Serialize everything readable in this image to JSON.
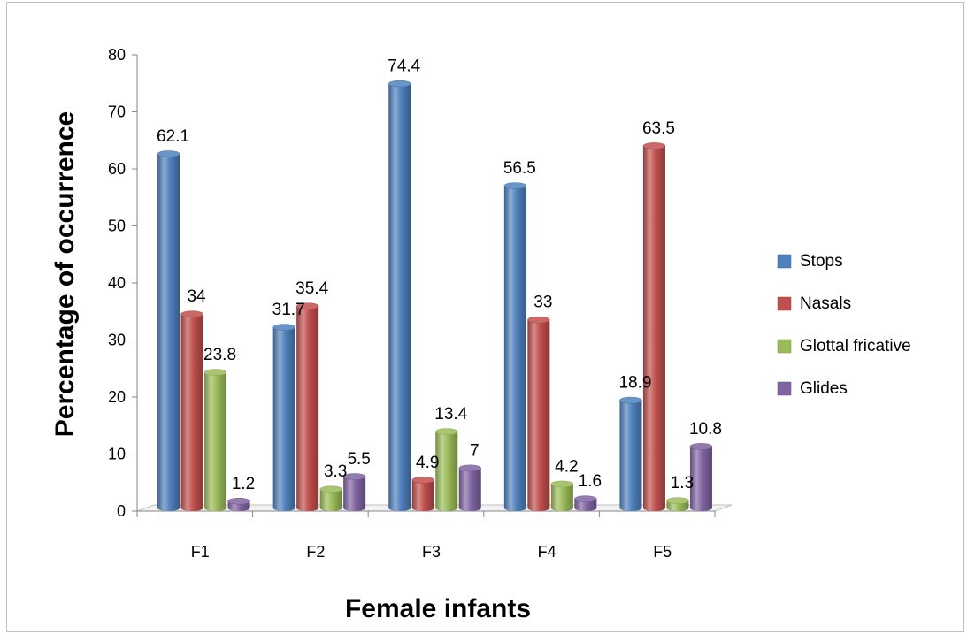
{
  "chart_data": {
    "type": "bar",
    "title": "",
    "xlabel": "Female infants",
    "ylabel": "Percentage of occurrence",
    "categories": [
      "F1",
      "F2",
      "F3",
      "F4",
      "F5"
    ],
    "ylim": [
      0,
      80
    ],
    "yticks": [
      0,
      10,
      20,
      30,
      40,
      50,
      60,
      70,
      80
    ],
    "legend_position": "right",
    "grid": false,
    "series": [
      {
        "name": "Stops",
        "color": "#4f81bd",
        "values": [
          62.1,
          31.7,
          74.4,
          56.5,
          18.9
        ],
        "labels": [
          "62.1",
          "31.7",
          "74.4",
          "56.5",
          "18.9"
        ]
      },
      {
        "name": "Nasals",
        "color": "#c0504d",
        "values": [
          34,
          35.4,
          4.9,
          33,
          63.5
        ],
        "labels": [
          "34",
          "35.4",
          "4.9",
          "33",
          "63.5"
        ]
      },
      {
        "name": "Glottal fricative",
        "color": "#9bbb59",
        "values": [
          23.8,
          3.3,
          13.4,
          4.2,
          1.3
        ],
        "labels": [
          "23.8",
          "3.3",
          "13.4",
          "4.2",
          "1.3"
        ]
      },
      {
        "name": "Glides",
        "color": "#8064a2",
        "values": [
          1.2,
          5.5,
          7,
          1.6,
          10.8
        ],
        "labels": [
          "1.2",
          "5.5",
          "7",
          "1.6",
          "10.8"
        ]
      }
    ]
  }
}
